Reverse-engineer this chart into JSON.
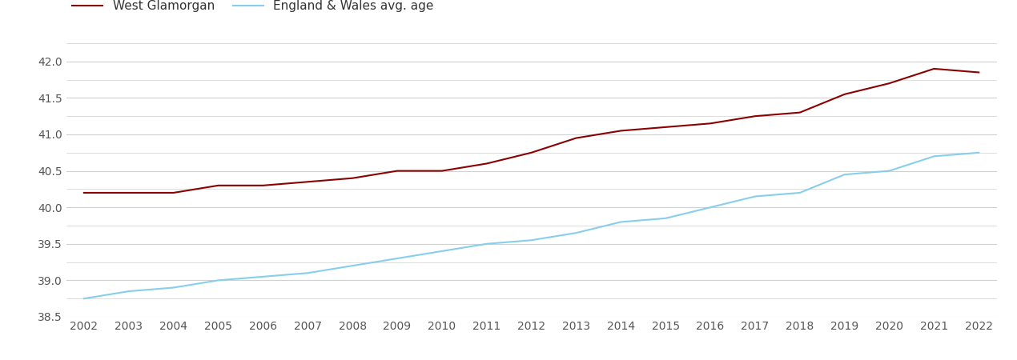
{
  "years": [
    2002,
    2003,
    2004,
    2005,
    2006,
    2007,
    2008,
    2009,
    2010,
    2011,
    2012,
    2013,
    2014,
    2015,
    2016,
    2017,
    2018,
    2019,
    2020,
    2021,
    2022
  ],
  "west_glamorgan": [
    40.2,
    40.2,
    40.2,
    40.3,
    40.3,
    40.35,
    40.4,
    40.5,
    40.5,
    40.6,
    40.75,
    40.95,
    41.05,
    41.1,
    41.15,
    41.25,
    41.3,
    41.55,
    41.7,
    41.9,
    41.85
  ],
  "england_wales": [
    38.75,
    38.85,
    38.9,
    39.0,
    39.05,
    39.1,
    39.2,
    39.3,
    39.4,
    39.5,
    39.55,
    39.65,
    39.8,
    39.85,
    40.0,
    40.15,
    40.2,
    40.45,
    40.5,
    40.7,
    40.75
  ],
  "wg_color": "#8b0000",
  "ew_color": "#87CEEB",
  "wg_label": "West Glamorgan",
  "ew_label": "England & Wales avg. age",
  "ylim": [
    38.5,
    42.25
  ],
  "yticks": [
    38.5,
    39.0,
    39.5,
    40.0,
    40.5,
    41.0,
    41.5,
    42.0
  ],
  "background_color": "#ffffff",
  "grid_color": "#d0d0d0",
  "line_width": 1.5,
  "legend_fontsize": 11,
  "tick_fontsize": 10,
  "tick_color": "#555555"
}
